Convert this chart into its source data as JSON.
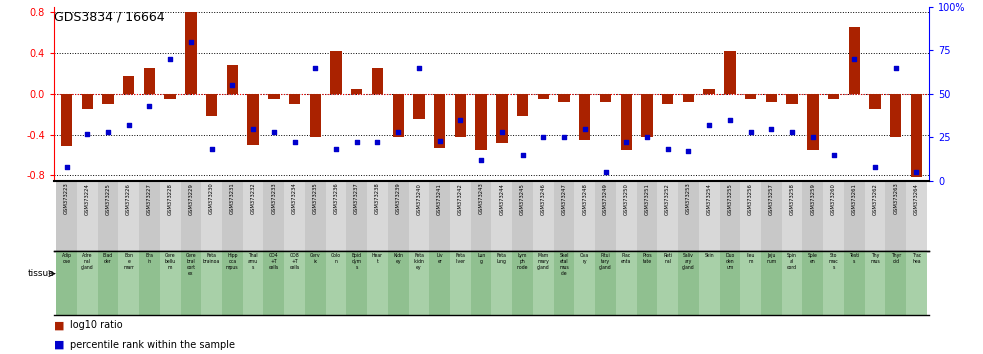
{
  "title": "GDS3834 / 16664",
  "gsm_labels": [
    "GSM373223",
    "GSM373224",
    "GSM373225",
    "GSM373226",
    "GSM373227",
    "GSM373228",
    "GSM373229",
    "GSM373230",
    "GSM373231",
    "GSM373232",
    "GSM373233",
    "GSM373234",
    "GSM373235",
    "GSM373236",
    "GSM373237",
    "GSM373238",
    "GSM373239",
    "GSM373240",
    "GSM373241",
    "GSM373242",
    "GSM373243",
    "GSM373244",
    "GSM373245",
    "GSM373246",
    "GSM373247",
    "GSM373248",
    "GSM373249",
    "GSM373250",
    "GSM373251",
    "GSM373252",
    "GSM373253",
    "GSM373254",
    "GSM373255",
    "GSM373256",
    "GSM373257",
    "GSM373258",
    "GSM373259",
    "GSM373260",
    "GSM373261",
    "GSM373262",
    "GSM373263",
    "GSM373264"
  ],
  "tissue_short": [
    "Adip\nose",
    "Adre\nnal\ngland",
    "Blad\nder",
    "Bon\ne\nmarr",
    "Bra\nin",
    "Cere\nbellu\nm",
    "Cere\nbral\ncort\nex",
    "Feta\nbrainoa",
    "Hipp\noca\nmpus",
    "Thal\namu\ns",
    "CD4\n+T\ncells",
    "CD8\n+T\ncells",
    "Cerv\nix",
    "Colo\nn",
    "Epid\ndym\ns",
    "Hear\nt",
    "Kidn\ney",
    "Feta\nlkidn\ney",
    "Liv\ner",
    "Feta\nliver",
    "Lun\ng",
    "Feta\nlung",
    "Lym\nph\nnode",
    "Mam\nmary\ngland",
    "Skel\netal\nmus\ncle",
    "Ova\nry",
    "Pitui\ntary\ngland",
    "Plac\nenta",
    "Pros\ntate",
    "Reti\nnal",
    "Saliv\nary\ngland",
    "Skin",
    "Duo\nden\num",
    "Ileu\nm",
    "Jeju\nnum",
    "Spin\nal\ncord",
    "Sple\nen",
    "Sto\nmac\ns",
    "Testi\ns",
    "Thy\nmus",
    "Thyr\noid",
    "Trac\nhea"
  ],
  "log10_ratio": [
    -0.51,
    -0.15,
    -0.1,
    0.17,
    0.25,
    -0.05,
    0.8,
    -0.22,
    0.28,
    -0.5,
    -0.05,
    -0.1,
    -0.42,
    0.42,
    0.05,
    0.25,
    -0.42,
    -0.25,
    -0.53,
    -0.42,
    -0.55,
    -0.48,
    -0.22,
    -0.05,
    -0.08,
    -0.45,
    -0.08,
    -0.55,
    -0.42,
    -0.1,
    -0.08,
    0.05,
    0.42,
    -0.05,
    -0.08,
    -0.1,
    -0.55,
    -0.05,
    0.65,
    -0.15,
    -0.42,
    -0.82
  ],
  "percentile": [
    8,
    27,
    28,
    32,
    43,
    70,
    80,
    18,
    55,
    30,
    28,
    22,
    65,
    18,
    22,
    22,
    28,
    65,
    23,
    35,
    12,
    28,
    15,
    25,
    25,
    30,
    5,
    22,
    25,
    18,
    17,
    32,
    35,
    28,
    30,
    28,
    25,
    15,
    70,
    8,
    65,
    5
  ],
  "bar_color": "#aa2200",
  "dot_color": "#0000cc",
  "background_color": "#ffffff",
  "ylim": [
    -0.85,
    0.85
  ],
  "yticks_left": [
    -0.8,
    -0.4,
    0.0,
    0.4,
    0.8
  ],
  "yticks_right": [
    0,
    25,
    50,
    75,
    100
  ],
  "legend_log10": "log10 ratio",
  "legend_pct": "percentile rank within the sample",
  "gsm_col_colors": [
    "#c8c8c8",
    "#d8d8d8"
  ],
  "tis_col_colors": [
    "#90c090",
    "#a8d0a8"
  ]
}
